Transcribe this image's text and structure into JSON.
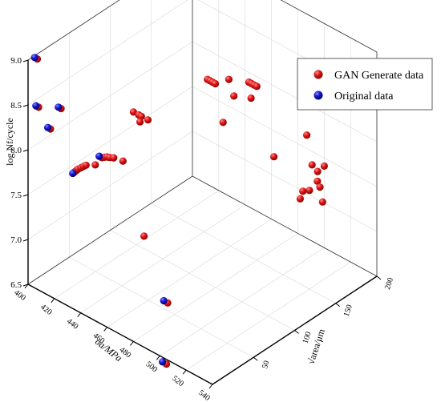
{
  "chart_data": {
    "type": "scatter3d",
    "title": "",
    "axes": {
      "x": {
        "label": "σa/MPa",
        "ticks": [
          400,
          420,
          440,
          460,
          480,
          500,
          520,
          540
        ],
        "range": [
          400,
          540
        ]
      },
      "y": {
        "label": "√area/μm",
        "ticks": [
          50,
          100,
          150,
          200
        ],
        "range": [
          0,
          200
        ]
      },
      "z": {
        "label": "log Nf/cycle",
        "ticks": [
          "6.5",
          "7.0",
          "7.5",
          "8.0",
          "8.5",
          "9.0"
        ],
        "range": [
          6.5,
          9.0
        ]
      }
    },
    "grid": true,
    "legend": {
      "position": "top-right"
    },
    "series": [
      {
        "name": "GAN Generate data",
        "color": "#e01a1a",
        "points": [
          [
            402,
            8,
            8.98
          ],
          [
            403,
            8,
            8.45
          ],
          [
            420,
            8,
            8.57
          ],
          [
            412,
            8,
            8.28
          ],
          [
            430,
            8,
            7.94
          ],
          [
            431,
            8,
            7.96
          ],
          [
            432,
            8,
            7.98
          ],
          [
            433,
            8,
            8.0
          ],
          [
            435,
            8,
            8.03
          ],
          [
            437,
            8,
            8.06
          ],
          [
            439,
            8,
            8.09
          ],
          [
            446,
            8,
            8.15
          ],
          [
            451,
            8,
            8.27
          ],
          [
            453,
            8,
            8.29
          ],
          [
            455,
            8,
            8.31
          ],
          [
            457,
            8,
            8.32
          ],
          [
            460,
            8,
            8.34
          ],
          [
            467,
            8,
            8.36
          ],
          [
            475,
            8,
            8.97
          ],
          [
            479,
            8,
            8.97
          ],
          [
            481,
            8,
            8.97
          ],
          [
            486,
            8,
            8.97
          ],
          [
            480,
            8,
            8.9
          ],
          [
            483,
            8,
            7.65
          ],
          [
            501,
            8,
            7.05
          ],
          [
            500,
            8,
            6.36
          ],
          [
            480,
            90,
            8.88
          ],
          [
            482,
            90,
            8.88
          ],
          [
            484,
            90,
            8.88
          ],
          [
            486,
            90,
            8.88
          ],
          [
            490,
            100,
            8.9
          ],
          [
            497,
            95,
            8.8
          ],
          [
            499,
            110,
            8.88
          ],
          [
            501,
            110,
            8.88
          ],
          [
            503,
            110,
            8.88
          ],
          [
            505,
            110,
            8.88
          ],
          [
            510,
            95,
            8.88
          ],
          [
            495,
            85,
            8.55
          ],
          [
            518,
            110,
            8.2
          ],
          [
            518,
            150,
            8.2
          ],
          [
            522,
            150,
            7.9
          ],
          [
            526,
            150,
            7.75
          ],
          [
            528,
            150,
            7.7
          ],
          [
            530,
            150,
            7.55
          ],
          [
            520,
            150,
            7.6
          ],
          [
            515,
            150,
            7.55
          ],
          [
            513,
            150,
            7.45
          ],
          [
            520,
            160,
            7.75
          ],
          [
            525,
            160,
            7.85
          ]
        ]
      },
      {
        "name": "Original data",
        "color": "#1a1ad6",
        "points": [
          [
            400,
            8,
            8.98
          ],
          [
            401,
            8,
            8.45
          ],
          [
            418,
            8,
            8.57
          ],
          [
            410,
            8,
            8.28
          ],
          [
            429,
            8,
            7.92
          ],
          [
            449,
            8,
            8.27
          ],
          [
            498,
            8,
            7.05
          ],
          [
            497,
            8,
            6.36
          ]
        ]
      }
    ]
  }
}
